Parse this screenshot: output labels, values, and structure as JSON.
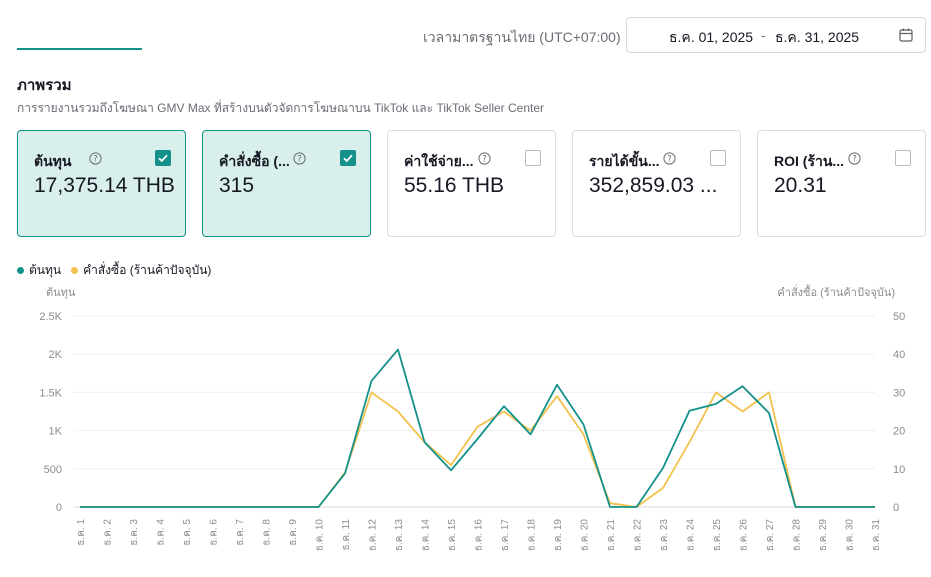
{
  "header": {
    "timezone_label": "เวลามาตรฐานไทย (UTC+07:00)",
    "date_start": "ธ.ค. 01, 2025",
    "date_sep": "-",
    "date_end": "ธ.ค. 31, 2025"
  },
  "overview": {
    "title": "ภาพรวม",
    "description": "การรายงานรวมถึงโฆษณา GMV Max ที่สร้างบนตัวจัดการโฆษณาบน TikTok และ TikTok Seller Center"
  },
  "cards": [
    {
      "label": "ต้นทุน",
      "value": "17,375.14 THB",
      "checked": true
    },
    {
      "label": "คำสั่งซื้อ (...",
      "value": "315",
      "checked": true
    },
    {
      "label": "ค่าใช้จ่าย...",
      "value": "55.16 THB",
      "checked": false
    },
    {
      "label": "รายได้ขั้น...",
      "value": "352,859.03 ...",
      "checked": false
    },
    {
      "label": "ROI (ร้าน...",
      "value": "20.31",
      "checked": false
    }
  ],
  "colors": {
    "accent": "#13918a",
    "cost": "#13918a",
    "orders": "#f2c14e"
  },
  "chart_data": {
    "type": "line",
    "legend_position": "top-left",
    "grid": true,
    "xlabel": "",
    "y_left_label": "ต้นทุน",
    "y_right_label": "คำสั่งซื้อ (ร้านค้าปัจจุบัน)",
    "y_left_ticks": [
      "0",
      "500",
      "1K",
      "1.5K",
      "2K",
      "2.5K"
    ],
    "y_left_lim": [
      0,
      2500
    ],
    "y_right_ticks": [
      "0",
      "10",
      "20",
      "30",
      "40",
      "50"
    ],
    "y_right_lim": [
      0,
      50
    ],
    "categories": [
      "ธ.ค. 1",
      "ธ.ค. 2",
      "ธ.ค. 3",
      "ธ.ค. 4",
      "ธ.ค. 5",
      "ธ.ค. 6",
      "ธ.ค. 7",
      "ธ.ค. 8",
      "ธ.ค. 9",
      "ธ.ค. 10",
      "ธ.ค. 11",
      "ธ.ค. 12",
      "ธ.ค. 13",
      "ธ.ค. 14",
      "ธ.ค. 15",
      "ธ.ค. 16",
      "ธ.ค. 17",
      "ธ.ค. 18",
      "ธ.ค. 19",
      "ธ.ค. 20",
      "ธ.ค. 21",
      "ธ.ค. 22",
      "ธ.ค. 23",
      "ธ.ค. 24",
      "ธ.ค. 25",
      "ธ.ค. 26",
      "ธ.ค. 27",
      "ธ.ค. 28",
      "ธ.ค. 29",
      "ธ.ค. 30",
      "ธ.ค. 31"
    ],
    "series": [
      {
        "name": "ต้นทุน",
        "axis": "left",
        "color": "#13918a",
        "values": [
          0,
          0,
          0,
          0,
          0,
          0,
          0,
          0,
          0,
          0,
          440,
          1650,
          2060,
          850,
          480,
          890,
          1320,
          950,
          1600,
          1080,
          0,
          0,
          510,
          1260,
          1350,
          1580,
          1230,
          0,
          0,
          0,
          0
        ]
      },
      {
        "name": "คำสั่งซื้อ (ร้านค้าปัจจุบัน)",
        "axis": "right",
        "color": "#f2c14e",
        "values": [
          0,
          0,
          0,
          0,
          0,
          0,
          0,
          0,
          0,
          0,
          9,
          30,
          25,
          17,
          11,
          21,
          25,
          20,
          29,
          19,
          1,
          0,
          5,
          17,
          30,
          25,
          30,
          0,
          0,
          0,
          0
        ]
      }
    ]
  }
}
